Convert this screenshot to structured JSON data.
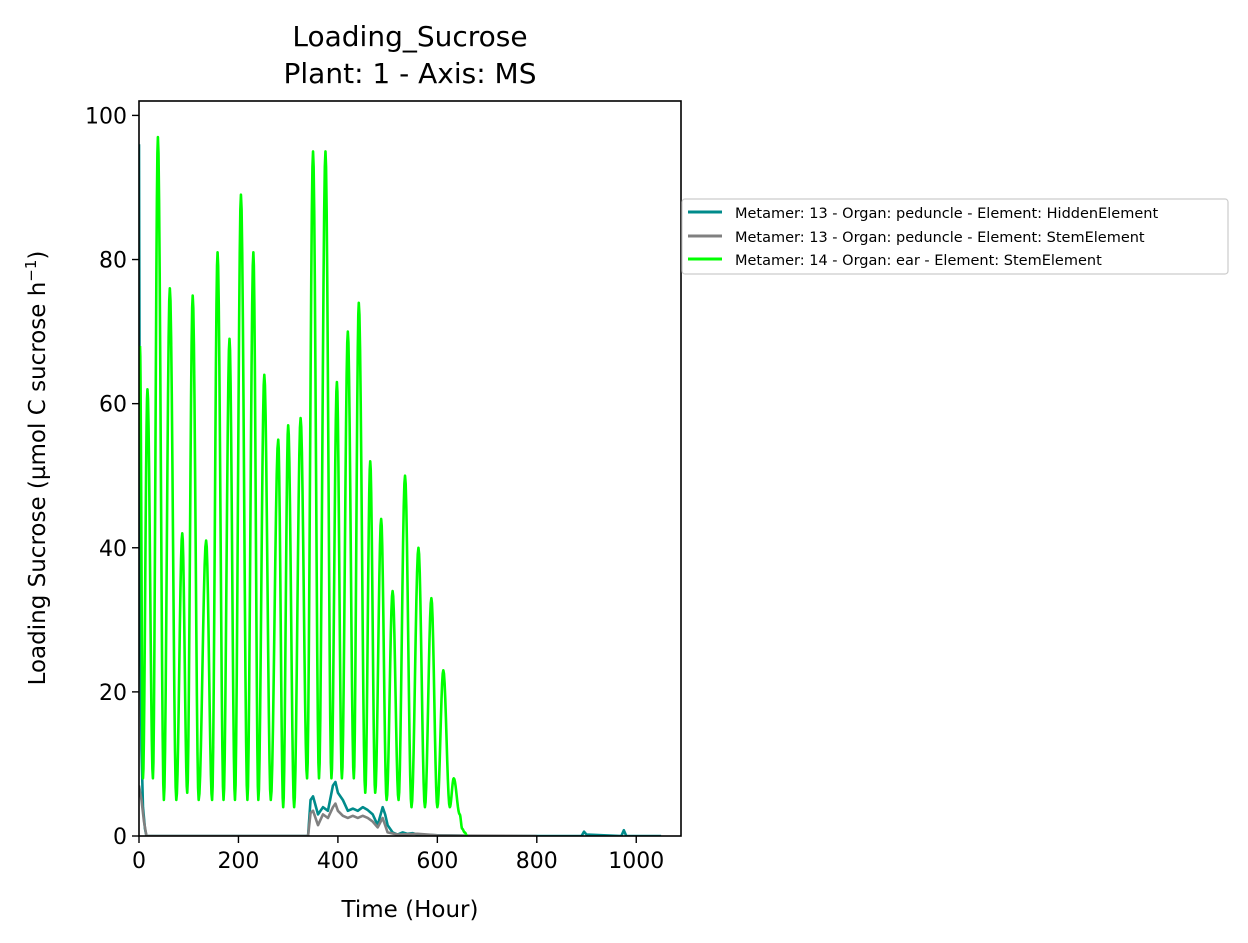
{
  "chart_data": {
    "type": "line",
    "title": "Loading_Sucrose",
    "subtitle": "Plant: 1 - Axis: MS",
    "xlabel": "Time (Hour)",
    "ylabel": "Loading Sucrose (µmol C sucrose h",
    "ylabel_sup": "−1",
    "ylabel_close": ")",
    "xlim": [
      0,
      1090
    ],
    "ylim": [
      0,
      102
    ],
    "xticks": [
      0,
      200,
      400,
      600,
      800,
      1000
    ],
    "yticks": [
      0,
      20,
      40,
      60,
      80,
      100
    ],
    "grid": false,
    "legend_position": "right-outside",
    "series": [
      {
        "name": "Metamer: 13 - Organ: peduncle - Element: HiddenElement",
        "color": "#008B8B",
        "x": [
          0,
          2,
          5,
          8,
          12,
          15,
          340,
          345,
          350,
          360,
          370,
          380,
          390,
          395,
          400,
          410,
          420,
          430,
          440,
          450,
          460,
          470,
          480,
          490,
          495,
          500,
          510,
          520,
          530,
          540,
          550,
          560,
          600,
          650,
          700,
          800,
          890,
          895,
          900,
          970,
          975,
          980,
          1050
        ],
        "y": [
          96,
          40,
          12,
          4,
          1,
          0,
          0,
          5,
          5.5,
          3,
          4,
          3.5,
          7,
          7.5,
          6,
          5,
          3.5,
          3.8,
          3.5,
          4,
          3.6,
          3,
          1.5,
          4,
          3,
          1.5,
          0.5,
          0.2,
          0.5,
          0.3,
          0.4,
          0.2,
          0.1,
          0.05,
          0,
          0,
          0,
          0.6,
          0.2,
          0,
          0.8,
          0,
          0
        ]
      },
      {
        "name": "Metamer: 13 - Organ: peduncle - Element: StemElement",
        "color": "#808080",
        "x": [
          0,
          5,
          10,
          15,
          340,
          345,
          350,
          360,
          370,
          380,
          390,
          395,
          400,
          410,
          420,
          430,
          440,
          450,
          460,
          470,
          480,
          490,
          500,
          520,
          560,
          600,
          660,
          800
        ],
        "y": [
          7,
          5,
          2,
          0,
          0,
          3.2,
          3.5,
          1.5,
          3,
          2.5,
          4,
          4.5,
          3.5,
          2.8,
          2.5,
          2.8,
          2.5,
          2.8,
          2.5,
          2,
          1.2,
          2.5,
          0.5,
          0.2,
          0.3,
          0.1,
          0.05,
          0
        ]
      },
      {
        "name": "Metamer: 14 - Organ: ear - Element: StemElement",
        "color": "#00FF00",
        "peaks": [
          [
            2,
            68
          ],
          [
            17,
            62
          ],
          [
            38,
            97
          ],
          [
            62,
            76
          ],
          [
            87,
            42
          ],
          [
            108,
            75
          ],
          [
            135,
            41
          ],
          [
            158,
            81
          ],
          [
            182,
            69
          ],
          [
            205,
            89
          ],
          [
            230,
            81
          ],
          [
            252,
            64
          ],
          [
            280,
            55
          ],
          [
            300,
            57
          ],
          [
            325,
            58
          ],
          [
            350,
            95
          ],
          [
            375,
            95
          ],
          [
            398,
            63
          ],
          [
            420,
            70
          ],
          [
            442,
            74
          ],
          [
            465,
            52
          ],
          [
            487,
            44
          ],
          [
            510,
            34
          ],
          [
            535,
            50
          ],
          [
            562,
            40
          ],
          [
            588,
            33
          ],
          [
            612,
            23
          ],
          [
            633,
            8
          ]
        ],
        "troughs": [
          [
            8,
            8
          ],
          [
            28,
            8
          ],
          [
            50,
            5
          ],
          [
            75,
            5
          ],
          [
            97,
            6
          ],
          [
            120,
            5
          ],
          [
            147,
            5
          ],
          [
            170,
            5
          ],
          [
            193,
            5
          ],
          [
            218,
            5
          ],
          [
            240,
            5
          ],
          [
            265,
            5
          ],
          [
            290,
            4
          ],
          [
            312,
            4
          ],
          [
            338,
            8
          ],
          [
            362,
            8
          ],
          [
            387,
            8
          ],
          [
            408,
            8
          ],
          [
            432,
            8
          ],
          [
            455,
            6
          ],
          [
            475,
            6
          ],
          [
            498,
            5
          ],
          [
            522,
            5
          ],
          [
            548,
            4
          ],
          [
            575,
            4
          ],
          [
            600,
            4
          ],
          [
            625,
            4
          ]
        ],
        "tail": [
          [
            645,
            3
          ],
          [
            650,
            1
          ],
          [
            655,
            0.5
          ],
          [
            660,
            0
          ]
        ]
      }
    ]
  }
}
